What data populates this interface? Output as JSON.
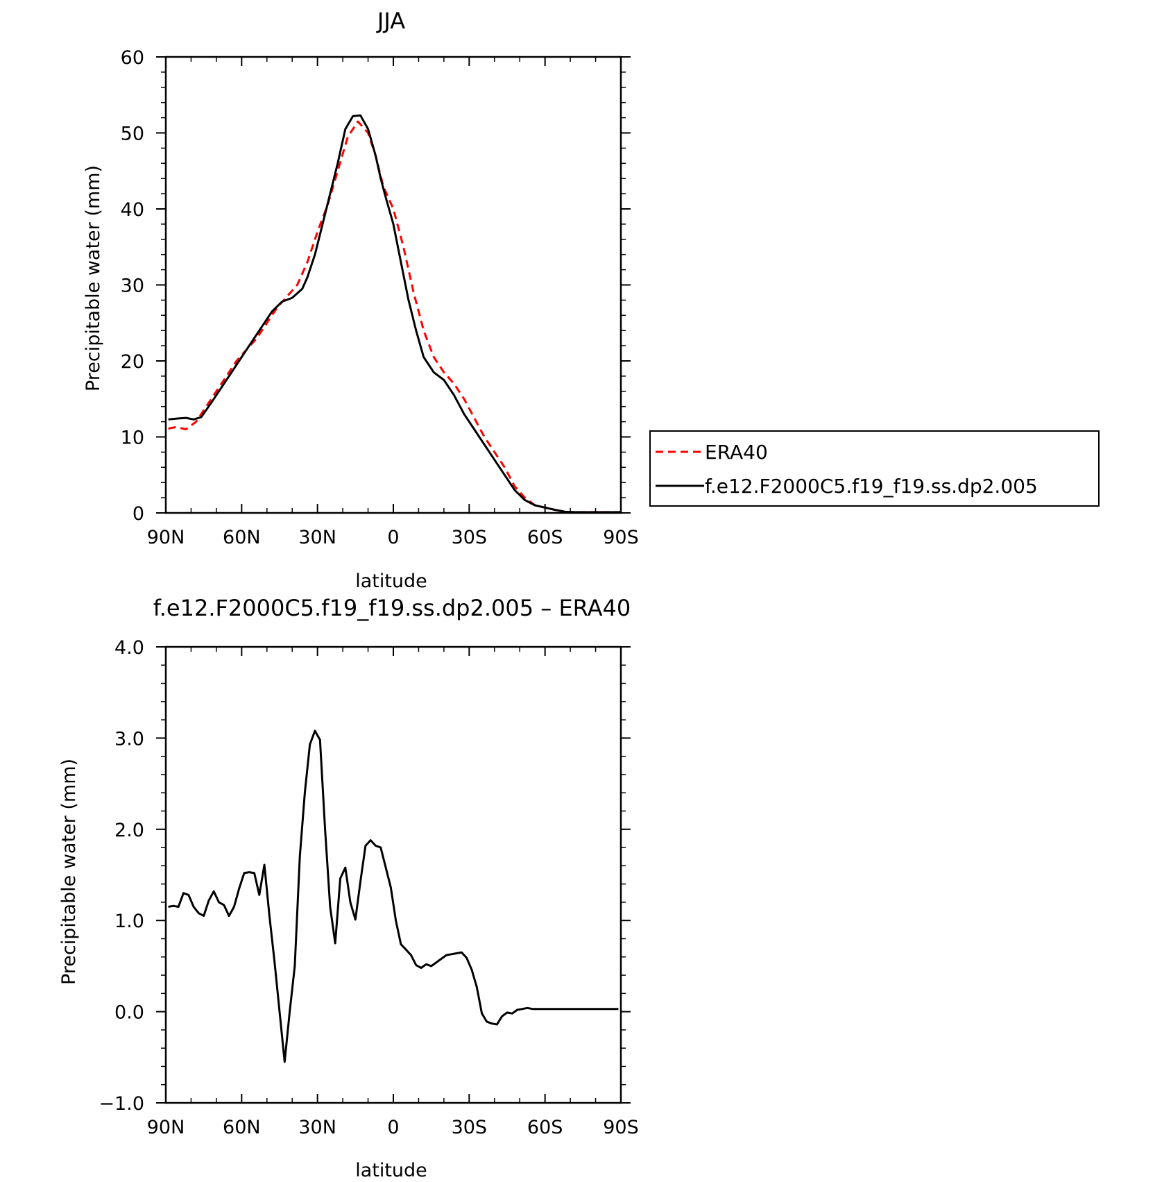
{
  "chart_data": [
    {
      "type": "line",
      "title": "JJA",
      "xlabel": "latitude",
      "ylabel": "Precipitable water (mm)",
      "xlim": [
        90,
        -90
      ],
      "ylim": [
        0,
        60
      ],
      "x_ticks": [
        {
          "value": 90,
          "label": "90N"
        },
        {
          "value": 60,
          "label": "60N"
        },
        {
          "value": 30,
          "label": "30N"
        },
        {
          "value": 0,
          "label": "0"
        },
        {
          "value": -30,
          "label": "30S"
        },
        {
          "value": -60,
          "label": "60S"
        },
        {
          "value": -90,
          "label": "90S"
        }
      ],
      "y_ticks": [
        {
          "value": 0,
          "label": "0"
        },
        {
          "value": 10,
          "label": "10"
        },
        {
          "value": 20,
          "label": "20"
        },
        {
          "value": 30,
          "label": "30"
        },
        {
          "value": 40,
          "label": "40"
        },
        {
          "value": 50,
          "label": "50"
        },
        {
          "value": 60,
          "label": "60"
        }
      ],
      "grid": false,
      "legend": "right",
      "series": [
        {
          "name": "ERA40",
          "color": "#ff0000",
          "dash": "dashed",
          "x": [
            89,
            86,
            82,
            78,
            74,
            70,
            66,
            62,
            58,
            54,
            50,
            46,
            42,
            38,
            34,
            30,
            26,
            22,
            18,
            14,
            10,
            7,
            4,
            0,
            -4,
            -8,
            -12,
            -16,
            -20,
            -24,
            -28,
            -32,
            -36,
            -40,
            -44,
            -48,
            -52,
            -56,
            -60,
            -64,
            -68,
            -72,
            -76,
            -80,
            -84,
            -88,
            -90
          ],
          "y": [
            11.1,
            11.3,
            11.0,
            12.0,
            14.0,
            16.0,
            18.0,
            20.0,
            21.5,
            23.0,
            25.0,
            27.0,
            28.5,
            30.0,
            33.0,
            37.0,
            40.5,
            45.0,
            49.5,
            51.5,
            50.0,
            47.0,
            43.0,
            40.0,
            35.0,
            29.0,
            24.0,
            20.5,
            18.5,
            17.0,
            15.0,
            12.5,
            10.0,
            8.0,
            6.0,
            3.5,
            2.0,
            1.0,
            0.7,
            0.4,
            0.15,
            0.1,
            0.1,
            0.1,
            0.1,
            0.1,
            0.1
          ]
        },
        {
          "name": "f.e12.F2000C5.f19_f19.ss.dp2.005",
          "color": "#000000",
          "dash": "solid",
          "x": [
            89,
            86,
            82,
            79,
            76,
            72,
            68,
            64,
            60,
            56,
            52,
            48,
            44,
            40,
            36,
            34,
            31,
            28,
            25,
            22,
            19,
            16,
            13,
            10,
            7,
            5,
            3,
            0,
            -3,
            -6,
            -9,
            -12,
            -16,
            -20,
            -24,
            -28,
            -32,
            -36,
            -40,
            -44,
            -48,
            -52,
            -56,
            -60,
            -64,
            -68,
            -72,
            -76,
            -80,
            -84,
            -88,
            -90
          ],
          "y": [
            12.3,
            12.4,
            12.5,
            12.3,
            12.6,
            14.5,
            16.5,
            18.5,
            20.5,
            22.5,
            24.5,
            26.5,
            27.8,
            28.3,
            29.5,
            31.0,
            34.0,
            38.0,
            42.0,
            46.0,
            50.5,
            52.2,
            52.3,
            50.5,
            47.0,
            44.0,
            41.5,
            38.0,
            33.0,
            28.0,
            24.0,
            20.5,
            18.5,
            17.5,
            15.5,
            13.0,
            11.0,
            9.0,
            7.0,
            5.0,
            3.0,
            1.7,
            1.0,
            0.7,
            0.4,
            0.15,
            0.1,
            0.1,
            0.1,
            0.1,
            0.1,
            0.1
          ]
        }
      ]
    },
    {
      "type": "line",
      "title": "f.e12.F2000C5.f19_f19.ss.dp2.005 – ERA40",
      "xlabel": "latitude",
      "ylabel": "Precipitable water (mm)",
      "xlim": [
        90,
        -90
      ],
      "ylim": [
        -1.0,
        4.0
      ],
      "x_ticks": [
        {
          "value": 90,
          "label": "90N"
        },
        {
          "value": 60,
          "label": "60N"
        },
        {
          "value": 30,
          "label": "30N"
        },
        {
          "value": 0,
          "label": "0"
        },
        {
          "value": -30,
          "label": "30S"
        },
        {
          "value": -60,
          "label": "60S"
        },
        {
          "value": -90,
          "label": "90S"
        }
      ],
      "y_ticks": [
        {
          "value": -1.0,
          "label": "−1.0"
        },
        {
          "value": 0.0,
          "label": "0.0"
        },
        {
          "value": 1.0,
          "label": "1.0"
        },
        {
          "value": 2.0,
          "label": "2.0"
        },
        {
          "value": 3.0,
          "label": "3.0"
        },
        {
          "value": 4.0,
          "label": "4.0"
        }
      ],
      "grid": false,
      "series": [
        {
          "color": "#000000",
          "dash": "solid",
          "x": [
            89,
            87,
            85,
            83,
            81,
            79,
            77,
            75,
            73,
            71,
            69,
            67,
            65,
            63,
            61,
            59,
            57,
            55,
            53,
            51,
            49,
            47,
            45,
            43,
            41,
            39,
            37,
            35,
            33,
            31,
            29,
            27,
            25,
            23,
            21,
            19,
            17,
            15,
            13,
            11,
            9,
            7,
            5,
            3,
            1,
            -1,
            -3,
            -5,
            -7,
            -9,
            -11,
            -13,
            -15,
            -17,
            -19,
            -21,
            -23,
            -25,
            -27,
            -29,
            -31,
            -33,
            -35,
            -37,
            -39,
            -41,
            -43,
            -45,
            -47,
            -49,
            -51,
            -53,
            -55,
            -57,
            -59,
            -61,
            -63,
            -65,
            -67,
            -69,
            -71,
            -73,
            -75,
            -77,
            -79,
            -81,
            -83,
            -85,
            -87,
            -89
          ],
          "y": [
            1.15,
            1.16,
            1.15,
            1.3,
            1.28,
            1.15,
            1.08,
            1.05,
            1.22,
            1.32,
            1.2,
            1.17,
            1.05,
            1.15,
            1.35,
            1.52,
            1.53,
            1.52,
            1.28,
            1.61,
            1.05,
            0.55,
            0.0,
            -0.55,
            0.0,
            0.5,
            1.7,
            2.4,
            2.93,
            3.08,
            2.98,
            2.0,
            1.15,
            0.75,
            1.46,
            1.58,
            1.2,
            1.01,
            1.43,
            1.82,
            1.88,
            1.82,
            1.8,
            1.58,
            1.36,
            1.0,
            0.74,
            0.68,
            0.62,
            0.51,
            0.48,
            0.52,
            0.5,
            0.54,
            0.58,
            0.62,
            0.63,
            0.64,
            0.65,
            0.59,
            0.46,
            0.27,
            -0.02,
            -0.11,
            -0.13,
            -0.14,
            -0.05,
            -0.01,
            -0.02,
            0.02,
            0.03,
            0.04,
            0.03,
            0.03,
            0.03,
            0.03,
            0.03,
            0.03,
            0.03,
            0.03,
            0.03,
            0.03,
            0.03,
            0.03,
            0.03,
            0.03,
            0.03,
            0.03,
            0.03,
            0.03
          ]
        }
      ]
    }
  ]
}
